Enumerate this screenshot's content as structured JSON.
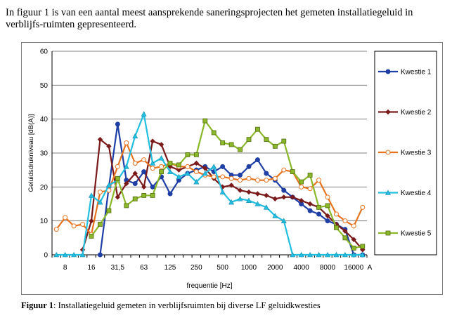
{
  "intro_text": "In figuur 1 is van een aantal meest aansprekende saneringsprojecten het gemeten installatiegeluid in verblijfs-ruimten gepresenteerd.",
  "caption": {
    "label": "Figuur 1",
    "text": ": Installatiegeluid gemeten in verblijfsruimten bij diverse LF geluidkwesties"
  },
  "chart_data": {
    "type": "line",
    "title": "",
    "xlabel": "frequentie [Hz]",
    "ylabel": "Geluidsdrukniveau [dB(A)]",
    "ylim": [
      0,
      60
    ],
    "yticks": [
      "0",
      "10",
      "20",
      "30",
      "40",
      "50",
      "60"
    ],
    "xtick_labels": [
      "8",
      "16",
      "31,5",
      "63",
      "125",
      "250",
      "500",
      "1000",
      "2000",
      "4000",
      "8000",
      "16000",
      "A"
    ],
    "x": [
      "6,3",
      "8",
      "10",
      "12,5",
      "16",
      "20",
      "25",
      "31,5",
      "40",
      "50",
      "63",
      "80",
      "100",
      "125",
      "160",
      "200",
      "250",
      "315",
      "400",
      "500",
      "630",
      "800",
      "1000",
      "1250",
      "1600",
      "2000",
      "2500",
      "3150",
      "4000",
      "5000",
      "6300",
      "8000",
      "10000",
      "12500",
      "16000",
      "20000"
    ],
    "grid": "horizontal",
    "legend_position": "right",
    "series": [
      {
        "name": "Kwestie 1",
        "color": "#1f3fa6",
        "marker": "circle",
        "values": [
          null,
          null,
          null,
          null,
          null,
          0,
          20,
          38.5,
          22,
          21,
          24.5,
          20,
          23,
          18,
          22,
          24,
          25,
          26,
          24.5,
          26,
          23.5,
          23.5,
          26,
          28,
          24,
          22,
          19,
          17,
          15,
          13,
          12,
          10,
          9,
          7.5,
          0,
          0
        ]
      },
      {
        "name": "Kwestie 2",
        "color": "#7a1a1a",
        "marker": "diamond",
        "values": [
          null,
          null,
          null,
          1.5,
          10,
          34,
          32,
          17,
          21,
          24,
          20,
          33.5,
          32.5,
          26,
          25,
          26,
          27,
          25.5,
          22.5,
          20,
          20.5,
          19,
          18.5,
          18,
          17.5,
          16.5,
          17,
          17,
          16,
          15,
          14,
          11.5,
          9,
          7,
          4.5,
          1.5
        ]
      },
      {
        "name": "Kwestie 3",
        "color": "#e8731f",
        "marker": "circle-open",
        "values": [
          7.5,
          11,
          8.5,
          9,
          6,
          18.5,
          19,
          26,
          33,
          27,
          28,
          25.5,
          26,
          27,
          26,
          26,
          24.5,
          23.5,
          23,
          23,
          22.5,
          22,
          22.5,
          22,
          22,
          22.5,
          25,
          24.5,
          20,
          19.5,
          22,
          17,
          12,
          10,
          8.5,
          14
        ]
      },
      {
        "name": "Kwestie 4",
        "color": "#22c0e0",
        "marker": "triangle",
        "values": [
          0,
          0,
          0,
          0,
          17.5,
          15.5,
          20.5,
          22,
          26,
          35,
          41.5,
          27,
          28.5,
          24.5,
          23,
          24,
          21.5,
          24,
          26,
          18.5,
          15.5,
          16.5,
          16,
          15,
          14,
          11.5,
          10,
          0,
          0,
          0,
          0,
          0,
          0,
          0,
          0,
          0
        ]
      },
      {
        "name": "Kwestie 5",
        "color": "#8ab829",
        "marker": "square",
        "values": [
          null,
          null,
          null,
          null,
          5.5,
          9,
          13,
          22.5,
          14.5,
          16.5,
          17.5,
          17.5,
          24.5,
          27,
          26.5,
          29.5,
          29.5,
          39.5,
          36,
          33,
          32.5,
          31,
          34,
          37,
          34,
          32,
          33.5,
          24.5,
          21.5,
          23.5,
          14,
          14.5,
          8,
          5,
          2,
          2.5
        ]
      }
    ]
  }
}
